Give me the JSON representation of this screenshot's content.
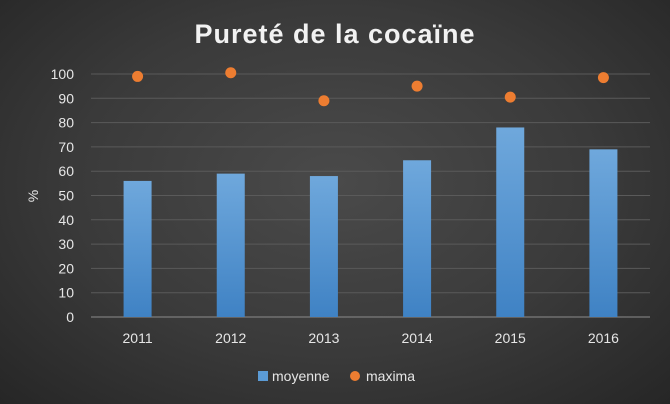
{
  "chart_data": {
    "type": "bar",
    "title": "Pureté de la cocaïne",
    "xlabel": "",
    "ylabel": "%",
    "categories": [
      "2011",
      "2012",
      "2013",
      "2014",
      "2015",
      "2016"
    ],
    "ylim": [
      0,
      100
    ],
    "yticks": [
      0,
      10,
      20,
      30,
      40,
      50,
      60,
      70,
      80,
      90,
      100
    ],
    "grid": true,
    "legend_position": "bottom",
    "series": [
      {
        "name": "moyenne",
        "type": "bar",
        "values": [
          56,
          59,
          58,
          64.5,
          78,
          69
        ],
        "color": "#5b9bd5"
      },
      {
        "name": "maxima",
        "type": "scatter",
        "values": [
          99,
          100.5,
          89,
          95,
          90.5,
          98.5
        ],
        "color": "#ed7d31"
      }
    ]
  }
}
